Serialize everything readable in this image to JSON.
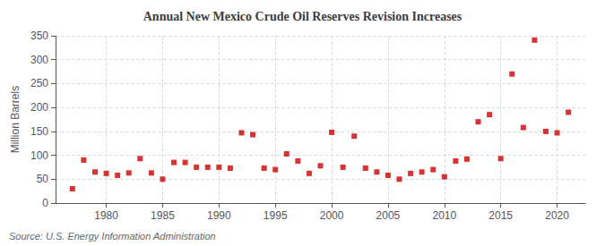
{
  "chart_data": {
    "type": "scatter",
    "title": "Annual New Mexico Crude Oil Reserves Revision Increases",
    "ylabel": "Million Barrels",
    "annotation": "Source: U.S. Energy Information Administration",
    "x": [
      1977,
      1978,
      1979,
      1980,
      1981,
      1982,
      1983,
      1984,
      1985,
      1986,
      1987,
      1988,
      1989,
      1990,
      1991,
      1992,
      1993,
      1994,
      1995,
      1996,
      1997,
      1998,
      1999,
      2000,
      2001,
      2002,
      2003,
      2004,
      2005,
      2006,
      2007,
      2008,
      2009,
      2010,
      2011,
      2012,
      2013,
      2014,
      2015,
      2016,
      2017,
      2018,
      2019,
      2020,
      2021
    ],
    "values": [
      30,
      90,
      65,
      62,
      58,
      63,
      93,
      63,
      50,
      85,
      85,
      75,
      75,
      75,
      73,
      147,
      143,
      73,
      70,
      103,
      88,
      62,
      78,
      148,
      75,
      140,
      73,
      65,
      58,
      50,
      62,
      65,
      70,
      55,
      88,
      92,
      170,
      185,
      93,
      270,
      158,
      341,
      150,
      147,
      190
    ],
    "color": "#cc0000",
    "marker": "square",
    "xlim": [
      1975.5,
      2022.5
    ],
    "xticks": [
      1980,
      1985,
      1990,
      1995,
      2000,
      2005,
      2010,
      2015,
      2020
    ],
    "ylim": [
      0,
      350
    ],
    "yticks": [
      0,
      50,
      100,
      150,
      200,
      250,
      300,
      350
    ],
    "grid": true
  }
}
